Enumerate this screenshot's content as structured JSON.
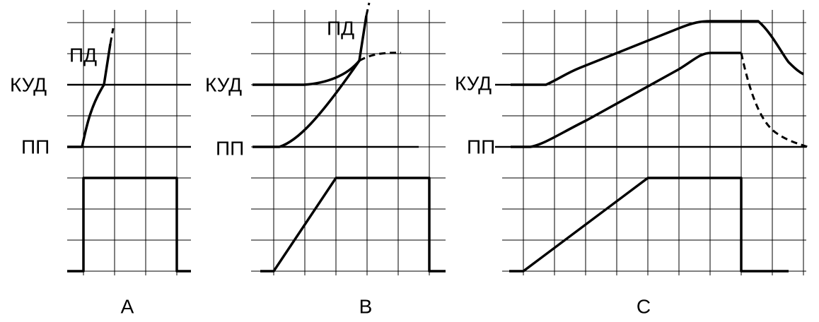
{
  "panels": [
    {
      "label": "A",
      "pd": "ПД",
      "kud": "КУД",
      "pp": "ПП"
    },
    {
      "label": "B",
      "pd": "ПД",
      "kud": "КУД",
      "pp": "ПП"
    },
    {
      "label": "C",
      "kud": "КУД",
      "pp": "ПП"
    }
  ]
}
